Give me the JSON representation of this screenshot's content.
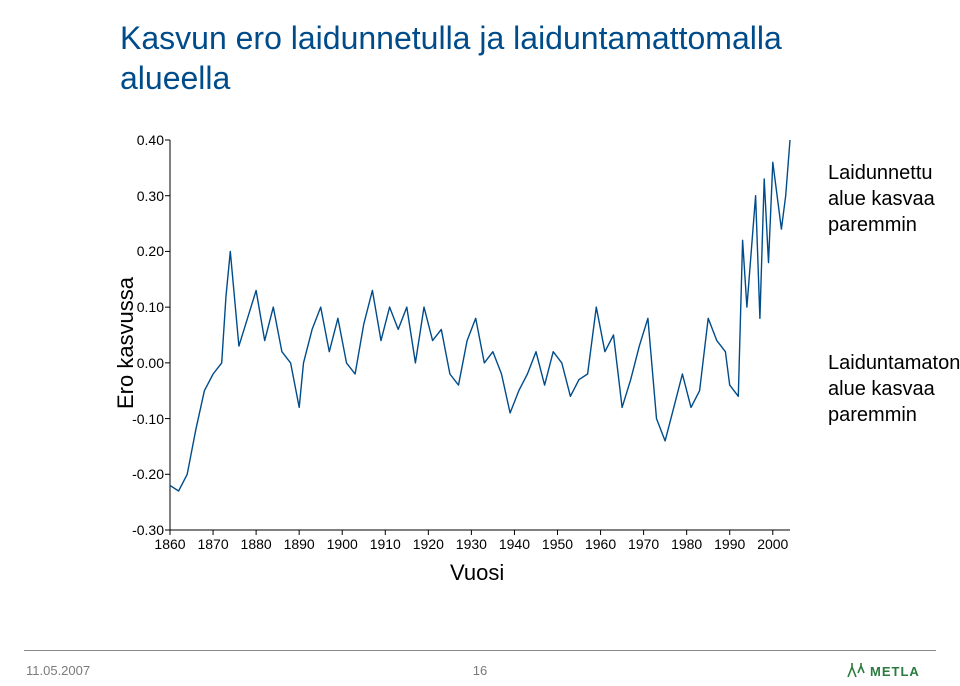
{
  "title": {
    "line1": "Kasvun ero laidunnetulla ja laiduntamattomalla",
    "line2": "alueella",
    "color": "#004c8a",
    "fontsize": 32
  },
  "chart": {
    "type": "line",
    "x_axis_title": "Vuosi",
    "y_axis_title": "Ero kasvussa",
    "axis_title_fontsize": 22,
    "tick_fontsize": 14,
    "xlim": [
      1860,
      2004
    ],
    "xticks": [
      1860,
      1870,
      1880,
      1890,
      1900,
      1910,
      1920,
      1930,
      1940,
      1950,
      1960,
      1970,
      1980,
      1990,
      2000
    ],
    "ylim": [
      -0.3,
      0.4
    ],
    "yticks": [
      -0.3,
      -0.2,
      -0.1,
      0.0,
      0.1,
      0.2,
      0.3,
      0.4
    ],
    "line_color": "#004c8a",
    "line_width": 1.4,
    "background_color": "#ffffff",
    "axis_color": "#000000",
    "series": {
      "x": [
        1860,
        1862,
        1864,
        1866,
        1868,
        1870,
        1872,
        1873,
        1874,
        1876,
        1878,
        1880,
        1882,
        1884,
        1886,
        1888,
        1890,
        1891,
        1893,
        1895,
        1897,
        1899,
        1901,
        1903,
        1905,
        1907,
        1909,
        1911,
        1913,
        1915,
        1917,
        1919,
        1921,
        1923,
        1925,
        1927,
        1929,
        1931,
        1933,
        1935,
        1937,
        1939,
        1941,
        1943,
        1945,
        1947,
        1949,
        1951,
        1953,
        1955,
        1957,
        1959,
        1961,
        1963,
        1965,
        1967,
        1969,
        1971,
        1973,
        1975,
        1977,
        1979,
        1981,
        1983,
        1985,
        1987,
        1989,
        1990,
        1992,
        1993,
        1994,
        1996,
        1997,
        1998,
        1999,
        2000,
        2001,
        2002,
        2003,
        2004
      ],
      "y": [
        -0.22,
        -0.23,
        -0.2,
        -0.12,
        -0.05,
        -0.02,
        0.0,
        0.12,
        0.2,
        0.03,
        0.08,
        0.13,
        0.04,
        0.1,
        0.02,
        0.0,
        -0.08,
        0.0,
        0.06,
        0.1,
        0.02,
        0.08,
        0.0,
        -0.02,
        0.07,
        0.13,
        0.04,
        0.1,
        0.06,
        0.1,
        0.0,
        0.1,
        0.04,
        0.06,
        -0.02,
        -0.04,
        0.04,
        0.08,
        0.0,
        0.02,
        -0.02,
        -0.09,
        -0.05,
        -0.02,
        0.02,
        -0.04,
        0.02,
        0.0,
        -0.06,
        -0.03,
        -0.02,
        0.1,
        0.02,
        0.05,
        -0.08,
        -0.03,
        0.03,
        0.08,
        -0.1,
        -0.14,
        -0.08,
        -0.02,
        -0.08,
        -0.05,
        0.08,
        0.04,
        0.02,
        -0.04,
        -0.06,
        0.22,
        0.1,
        0.3,
        0.08,
        0.33,
        0.18,
        0.36,
        0.3,
        0.24,
        0.3,
        0.4
      ]
    }
  },
  "annotations": {
    "upper": {
      "line1": "Laidunnettu",
      "line2": "alue kasvaa",
      "line3": "paremmin"
    },
    "lower": {
      "line1": "Laiduntamaton",
      "line2": "alue kasvaa",
      "line3": "paremmin"
    },
    "fontsize": 20,
    "color": "#000000"
  },
  "footer": {
    "date": "11.05.2007",
    "page": "16",
    "logo_text": "METLA",
    "logo_color": "#2a7b3d",
    "line_color": "#888888",
    "text_color": "#7a7a7a"
  }
}
